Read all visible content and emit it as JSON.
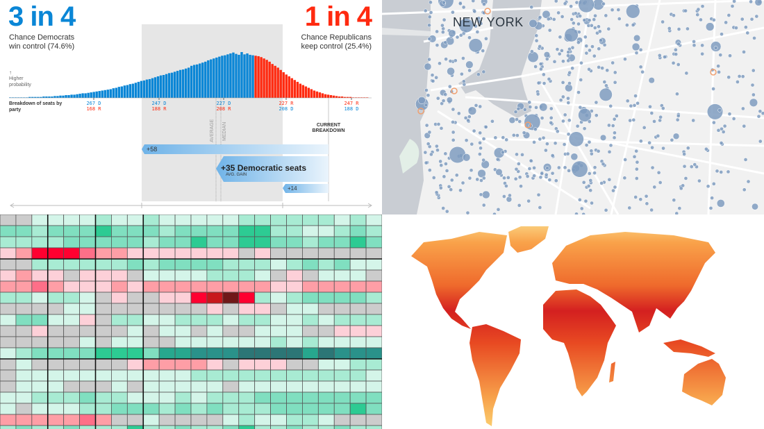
{
  "election": {
    "dem_headline": "3 in 4",
    "dem_sub1": "Chance Democrats",
    "dem_sub2": "win control (74.6%)",
    "rep_headline": "1 in 4",
    "rep_sub1": "Chance Republicans",
    "rep_sub2": "keep control (25.4%)",
    "arrow": "↑",
    "prob_label1": "Higher",
    "prob_label2": "probability",
    "axis_label1": "Breakdown of seats by",
    "axis_label2": "party",
    "ticks": [
      {
        "top": "267 D",
        "bottom": "168 R",
        "top_party": "dem"
      },
      {
        "top": "247 D",
        "bottom": "188 R",
        "top_party": "dem"
      },
      {
        "top": "227 D",
        "bottom": "208 R",
        "top_party": "dem"
      },
      {
        "top": "227 R",
        "bottom": "208 D",
        "top_party": "rep"
      },
      {
        "top": "247 R",
        "bottom": "188 D",
        "top_party": "rep"
      }
    ],
    "average_label": "AVERAGE",
    "median_label": "MEDIAN",
    "current_label1": "CURRENT",
    "current_label2": "BREAKDOWN",
    "range_high": "+58",
    "avg_gain": "+35 Democratic seats",
    "avg_gain_caption": "AVG. GAIN",
    "range_low": "+14",
    "colors": {
      "dem": "#0a86d6",
      "rep": "#ff2a10"
    }
  },
  "chart_data": [
    {
      "type": "bar",
      "xlabel": "Breakdown of seats by party",
      "ylabel": "Higher probability",
      "series": [
        {
          "color": "#0a86d6",
          "values": [
            1,
            1,
            1,
            1,
            1,
            1,
            1,
            2,
            2,
            2,
            2,
            2,
            3,
            3,
            3,
            3,
            4,
            4,
            5,
            5,
            6,
            6,
            7,
            7,
            8,
            9,
            10,
            10,
            11,
            12,
            13,
            14,
            15,
            16,
            17,
            18,
            19,
            21,
            22,
            24,
            25,
            27,
            28,
            30,
            31,
            33,
            35,
            37,
            38,
            40,
            41,
            43,
            45,
            47,
            49,
            50,
            52,
            54,
            55,
            57,
            59,
            61,
            62,
            64,
            66,
            70,
            72,
            73,
            75,
            77,
            79,
            82,
            84,
            86,
            88,
            90,
            92,
            93,
            95,
            97,
            99,
            96,
            94,
            100,
            95,
            97,
            94,
            93
          ]
        },
        {
          "color": "#ff2a10",
          "values": [
            92,
            91,
            89,
            86,
            83,
            79,
            74,
            70,
            66,
            61,
            56,
            51,
            47,
            43,
            39,
            35,
            31,
            28,
            25,
            22,
            19,
            16,
            14,
            12,
            10,
            8,
            7,
            6,
            5,
            4,
            3,
            3,
            2,
            2,
            2,
            1,
            1,
            1,
            1,
            1,
            1,
            0
          ]
        }
      ]
    },
    {
      "type": "heatmap",
      "palette": {
        "g": "#cccccc",
        "p1": "#fdd0d8",
        "p2": "#fe9ea6",
        "p3": "#fe6f88",
        "r4": "#ff0030",
        "r5": "#c8181c",
        "r6": "#701818",
        "t1": "#d4f5e9",
        "t2": "#a8ebd3",
        "t3": "#80dfc0",
        "t4": "#2dcb93",
        "t5": "#27a78e",
        "t6": "#2a928a",
        "t7": "#2c7676"
      },
      "rows": [
        "g g t1 t1 t1 t1 t2 t1 t1 t2 t1 t1 t1 t1 t1 t2 t2 t2 t2 t2 t2 t1 t2 t1",
        "t3 t3 t2 t3 t3 t3 t4 t3 t3 t3 t2 t3 t3 t3 t3 t4 t4 t2 t2 t1 t1 t2 t3 t2",
        "t2 t2 t2 t2 t3 t3 t3 t3 t3 t2 t3 t3 t4 t3 t3 t4 t4 t3 t3 t2 t3 t3 t4 t3",
        "p1 p2 r4 r4 r4 p3 p2 p2 p1 p1 p1 p1 p1 p1 p1 g p1 g g g g g g g",
        "g g t2 t2 t2 t2 t2 t2 t3 t2 t3 t3 t3 t3 t2 t2 t2 t1 t2 t3 t2 t3 t1 t1",
        "p1 p2 p1 p1 g p1 p1 p1 g t1 t1 t1 t1 t2 t2 t2 t1 g p1 g t1 t1 t1 g",
        "p2 p2 p3 p2 p1 p1 p1 p2 p1 p2 p2 p2 p2 p2 p2 p2 p2 p1 p1 p2 p2 p2 p2 p2",
        "t2 t2 t1 t2 t2 t1 g p1 g g p1 p1 r4 r5 r6 r4 t2 t1 t2 t3 t3 t3 t3 t2",
        "g g g g t1 t1 g g g g g g g p1 g p1 p1 g t1 t1 g g g g",
        "t1 t3 t3 t1 t1 p1 g t2 t2 t1 t1 t2 t2 t2 t1 t2 t2 t1 t1 t2 t1 t2 t2 t2",
        "g g p1 g g g g g t1 g t1 t1 g t1 g g t1 t1 t1 g g p1 p1 p1",
        "g g g g g t1 g t1 t1 g g t1 t1 t1 t1 t1 t1 t2 t1 t2 t1 t1 t1 t1",
        "t1 t2 t3 t3 t3 t3 t4 t4 t4 t3 t5 t5 t6 t6 t6 t7 t7 t7 t7 t5 t7 t6 t6 t6",
        "g t1 g g g g g g p1 p2 p2 p2 p2 p1 g p1 p1 p1 g g t1 t1 t2 t2",
        "g t1 t1 t1 t1 t1 t1 t1 t1 t1 t1 t1 t2 t2 t2 t2 t2 t2 t2 t2 t2 t2 t2 t1",
        "g t1 t1 t1 g g g t1 g t1 t1 t1 t1 t1 g t1 t1 t1 t1 t1 t1 t1 t1 t1",
        "t1 t1 t2 t2 t2 t3 t2 t2 t1 t1 t1 t2 t1 t2 t2 t2 t3 t3 t3 t3 t3 t3 t3 t3",
        "t1 g t1 t1 t1 t2 t2 t3 t3 t3 t2 t3 t2 t3 t2 t2 t2 t3 t3 t3 t3 t3 t4 t3",
        "p2 p2 p2 p2 p2 p3 p2 g g t1 g g g g t1 t2 t1 t1 t2 t2 t1 g g g",
        "t2 t3 t2 t2 t3 t2 t2 t2 t4 t2 t2 t3 t2 t2 t3 t4 t2 t2 t3 t2 t2 t3 t2 t2"
      ]
    }
  ],
  "nyc_map": {
    "label": "NEW YORK",
    "colors": {
      "land": "#f1f1f1",
      "water": "#c9cdd3",
      "road": "#ffffff",
      "marker": "#7f9cbf",
      "highlight": "#f0a070"
    }
  },
  "world_map": {
    "colors": {
      "cool": "#fbe89a",
      "warm": "#f9a24a",
      "hot": "#e8431f",
      "hottest": "#d42020"
    }
  }
}
